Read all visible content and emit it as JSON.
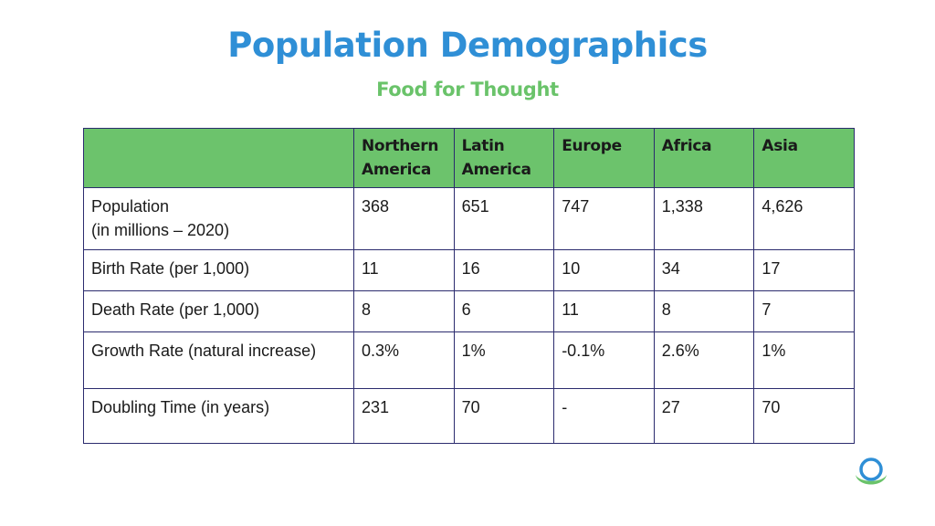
{
  "header": {
    "title": "Population Demographics",
    "subtitle": "Food for Thought"
  },
  "table": {
    "corner": "",
    "columns": [
      "Northern America",
      "Latin America",
      "Europe",
      "Africa",
      "Asia"
    ],
    "rows": [
      {
        "label": "Population\n(in millions – 2020)",
        "values": [
          "368",
          "651",
          "747",
          "1,338",
          "4,626"
        ]
      },
      {
        "label": "Birth Rate (per 1,000)",
        "values": [
          "11",
          "16",
          "10",
          "34",
          "17"
        ]
      },
      {
        "label": "Death Rate (per 1,000)",
        "values": [
          "8",
          "6",
          "11",
          "8",
          "7"
        ]
      },
      {
        "label": "Growth Rate (natural increase)",
        "values": [
          "0.3%",
          "1%",
          "-0.1%",
          "2.6%",
          "1%"
        ]
      },
      {
        "label": "Doubling Time (in years)",
        "values": [
          "231",
          "70",
          "-",
          "27",
          "70"
        ]
      }
    ]
  },
  "logo": {
    "icon": "globe-swoosh-logo-icon",
    "ring_color": "#2f8fd6",
    "swoosh_color": "#6ac36a"
  },
  "colors": {
    "title": "#2f8fd6",
    "subtitle": "#6ac36a",
    "header_fill": "#6cc36c",
    "border": "#2b2b6e"
  }
}
